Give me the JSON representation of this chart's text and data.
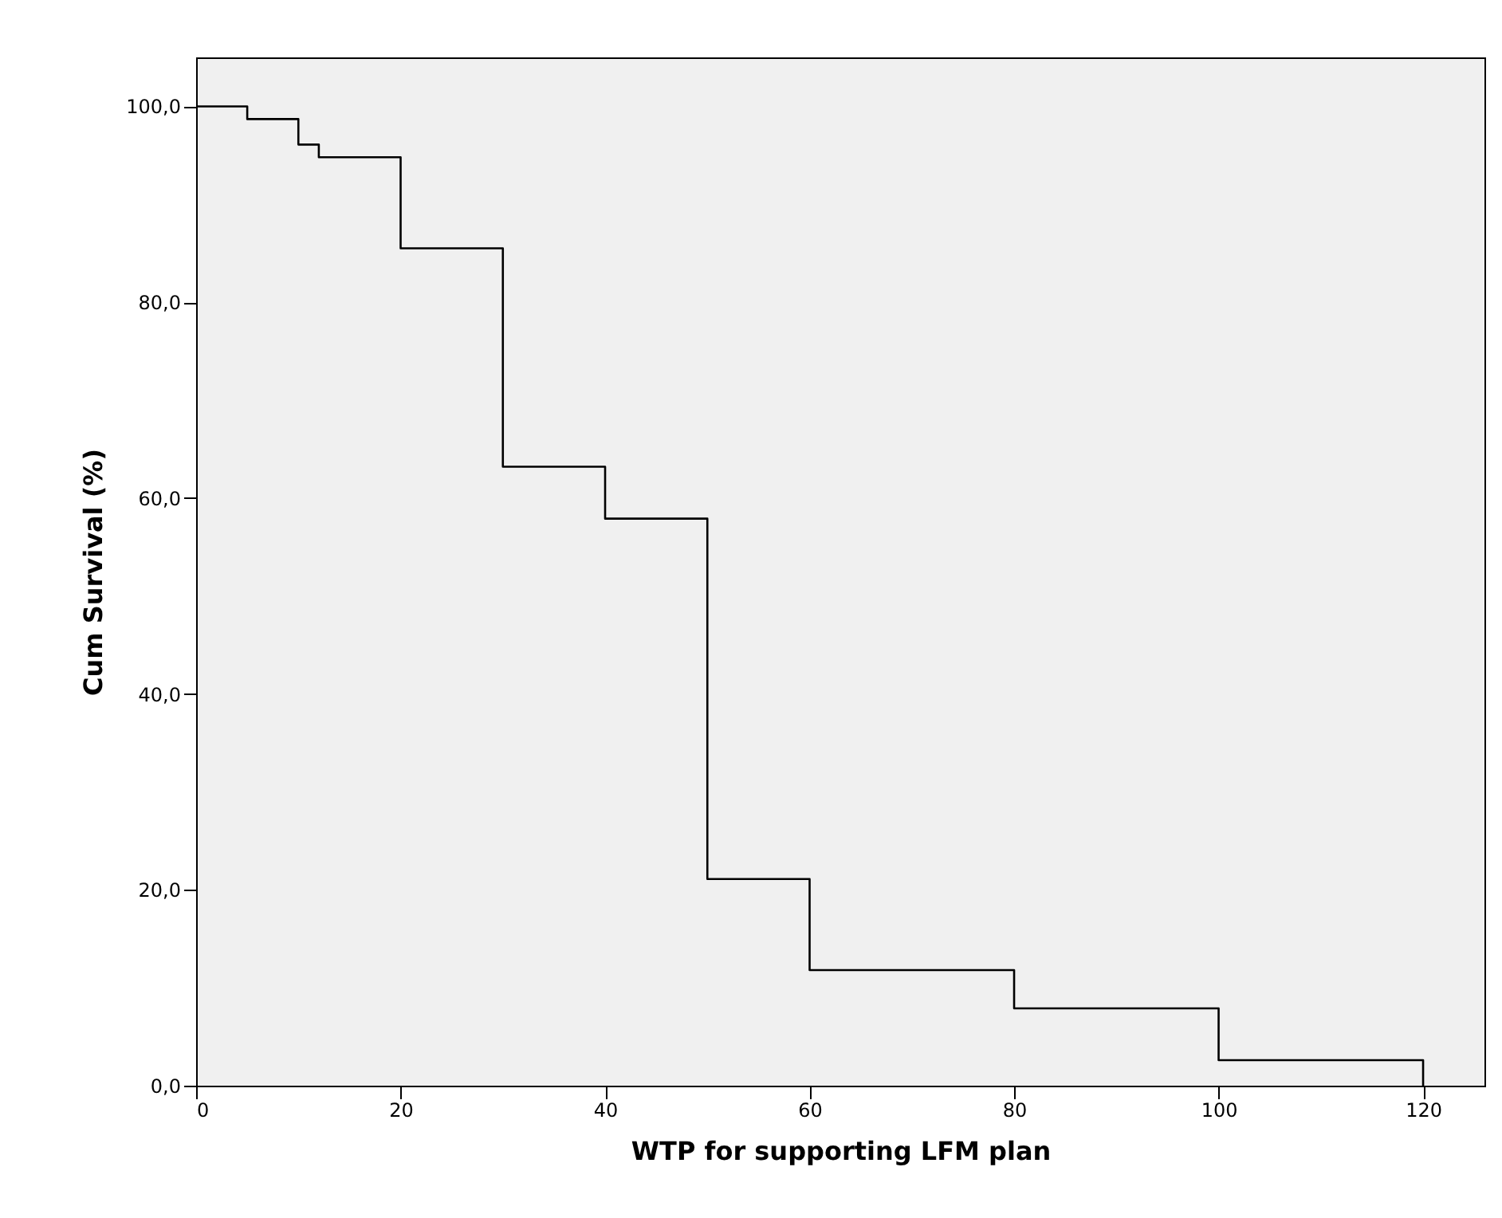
{
  "chart_data": {
    "type": "step",
    "xlabel": "WTP for supporting LFM plan",
    "ylabel": "Cum Survival (%)",
    "x": [
      0,
      5,
      10,
      12,
      20,
      30,
      40,
      50,
      60,
      80,
      100,
      120
    ],
    "series": [
      {
        "color": "#000000",
        "values": [
          100,
          98.7,
          96.1,
          94.8,
          85.5,
          63.2,
          57.9,
          21.1,
          11.8,
          7.9,
          2.6,
          0
        ]
      }
    ],
    "xlim": [
      0,
      126
    ],
    "xticks": [
      0,
      20,
      40,
      60,
      80,
      100,
      120
    ],
    "ylim": [
      0,
      105
    ],
    "yticks": [
      {
        "value": 0,
        "label": "0,0"
      },
      {
        "value": 20,
        "label": "20,0"
      },
      {
        "value": 40,
        "label": "40,0"
      },
      {
        "value": 60,
        "label": "60,0"
      },
      {
        "value": 80,
        "label": "80,0"
      },
      {
        "value": 100,
        "label": "100,0"
      }
    ],
    "grid": false,
    "marker": "none",
    "line_style": "solid"
  }
}
